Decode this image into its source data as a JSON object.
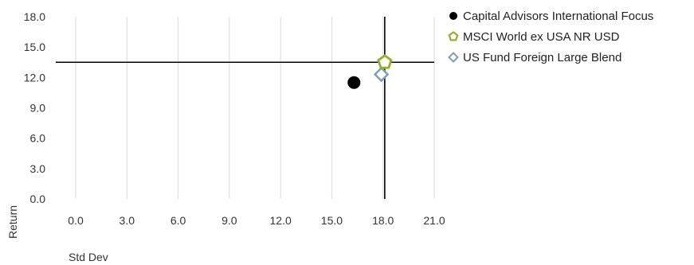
{
  "chart_data": {
    "type": "scatter",
    "xlabel": "Std Dev",
    "ylabel": "Return",
    "xlim": [
      0,
      21
    ],
    "ylim": [
      0,
      18
    ],
    "xticks": [
      "0.0",
      "3.0",
      "6.0",
      "9.0",
      "12.0",
      "15.0",
      "18.0",
      "21.0"
    ],
    "yticks": [
      "0.0",
      "3.0",
      "6.0",
      "9.0",
      "12.0",
      "15.0",
      "18.0"
    ],
    "grid": "vertical",
    "legend": "right",
    "series": [
      {
        "name": "Capital Advisors International Focus",
        "x": 16.3,
        "y": 11.5,
        "marker": "circle",
        "color": "#000000"
      },
      {
        "name": "MSCI World ex USA NR USD",
        "x": 18.1,
        "y": 13.5,
        "marker": "pentagon",
        "color": "#9aad2a"
      },
      {
        "name": "US Fund Foreign Large Blend",
        "x": 17.9,
        "y": 12.3,
        "marker": "diamond",
        "color": "#7a9fb6"
      }
    ],
    "crosshair": {
      "x": 18.1,
      "y": 13.5,
      "color": "#000000"
    }
  }
}
